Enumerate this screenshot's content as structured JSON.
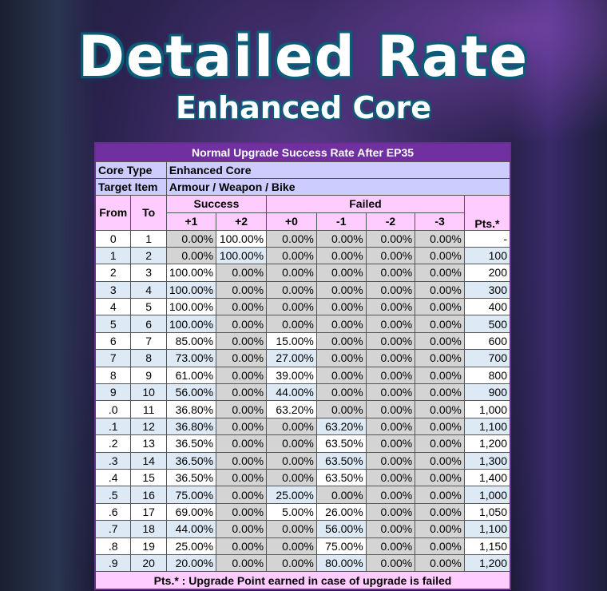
{
  "title": "Detailed Rate",
  "subtitle": "Enhanced Core",
  "table": {
    "caption": "Normal Upgrade Success Rate After EP35",
    "core_type_label": "Core Type",
    "core_type": "Enhanced Core",
    "target_label": "Target Item",
    "target": "Armour / Weapon / Bike",
    "headers": {
      "from": "From",
      "to": "To",
      "success": "Success",
      "failed": "Failed",
      "pts": "Pts.*",
      "cols": [
        "+1",
        "+2",
        "+0",
        "-1",
        "-2",
        "-3"
      ]
    },
    "rows": [
      [
        "0",
        "1",
        "0.00%",
        "100.00%",
        "0.00%",
        "0.00%",
        "0.00%",
        "0.00%",
        "-"
      ],
      [
        "1",
        "2",
        "0.00%",
        "100.00%",
        "0.00%",
        "0.00%",
        "0.00%",
        "0.00%",
        "100"
      ],
      [
        "2",
        "3",
        "100.00%",
        "0.00%",
        "0.00%",
        "0.00%",
        "0.00%",
        "0.00%",
        "200"
      ],
      [
        "3",
        "4",
        "100.00%",
        "0.00%",
        "0.00%",
        "0.00%",
        "0.00%",
        "0.00%",
        "300"
      ],
      [
        "4",
        "5",
        "100.00%",
        "0.00%",
        "0.00%",
        "0.00%",
        "0.00%",
        "0.00%",
        "400"
      ],
      [
        "5",
        "6",
        "100.00%",
        "0.00%",
        "0.00%",
        "0.00%",
        "0.00%",
        "0.00%",
        "500"
      ],
      [
        "6",
        "7",
        "85.00%",
        "0.00%",
        "15.00%",
        "0.00%",
        "0.00%",
        "0.00%",
        "600"
      ],
      [
        "7",
        "8",
        "73.00%",
        "0.00%",
        "27.00%",
        "0.00%",
        "0.00%",
        "0.00%",
        "700"
      ],
      [
        "8",
        "9",
        "61.00%",
        "0.00%",
        "39.00%",
        "0.00%",
        "0.00%",
        "0.00%",
        "800"
      ],
      [
        "9",
        "10",
        "56.00%",
        "0.00%",
        "44.00%",
        "0.00%",
        "0.00%",
        "0.00%",
        "900"
      ],
      [
        ".0",
        "11",
        "36.80%",
        "0.00%",
        "63.20%",
        "0.00%",
        "0.00%",
        "0.00%",
        "1,000"
      ],
      [
        ".1",
        "12",
        "36.80%",
        "0.00%",
        "0.00%",
        "63.20%",
        "0.00%",
        "0.00%",
        "1,100"
      ],
      [
        ".2",
        "13",
        "36.50%",
        "0.00%",
        "0.00%",
        "63.50%",
        "0.00%",
        "0.00%",
        "1,200"
      ],
      [
        ".3",
        "14",
        "36.50%",
        "0.00%",
        "0.00%",
        "63.50%",
        "0.00%",
        "0.00%",
        "1,300"
      ],
      [
        ".4",
        "15",
        "36.50%",
        "0.00%",
        "0.00%",
        "63.50%",
        "0.00%",
        "0.00%",
        "1,400"
      ],
      [
        ".5",
        "16",
        "75.00%",
        "0.00%",
        "25.00%",
        "0.00%",
        "0.00%",
        "0.00%",
        "1,000"
      ],
      [
        ".6",
        "17",
        "69.00%",
        "0.00%",
        "5.00%",
        "26.00%",
        "0.00%",
        "0.00%",
        "1,050"
      ],
      [
        ".7",
        "18",
        "44.00%",
        "0.00%",
        "0.00%",
        "56.00%",
        "0.00%",
        "0.00%",
        "1,100"
      ],
      [
        ".8",
        "19",
        "25.00%",
        "0.00%",
        "0.00%",
        "75.00%",
        "0.00%",
        "0.00%",
        "1,150"
      ],
      [
        ".9",
        "20",
        "20.00%",
        "0.00%",
        "0.00%",
        "80.00%",
        "0.00%",
        "0.00%",
        "1,200"
      ]
    ],
    "footnote": "Pts.* : Upgrade Point earned in case of upgrade is failed"
  }
}
